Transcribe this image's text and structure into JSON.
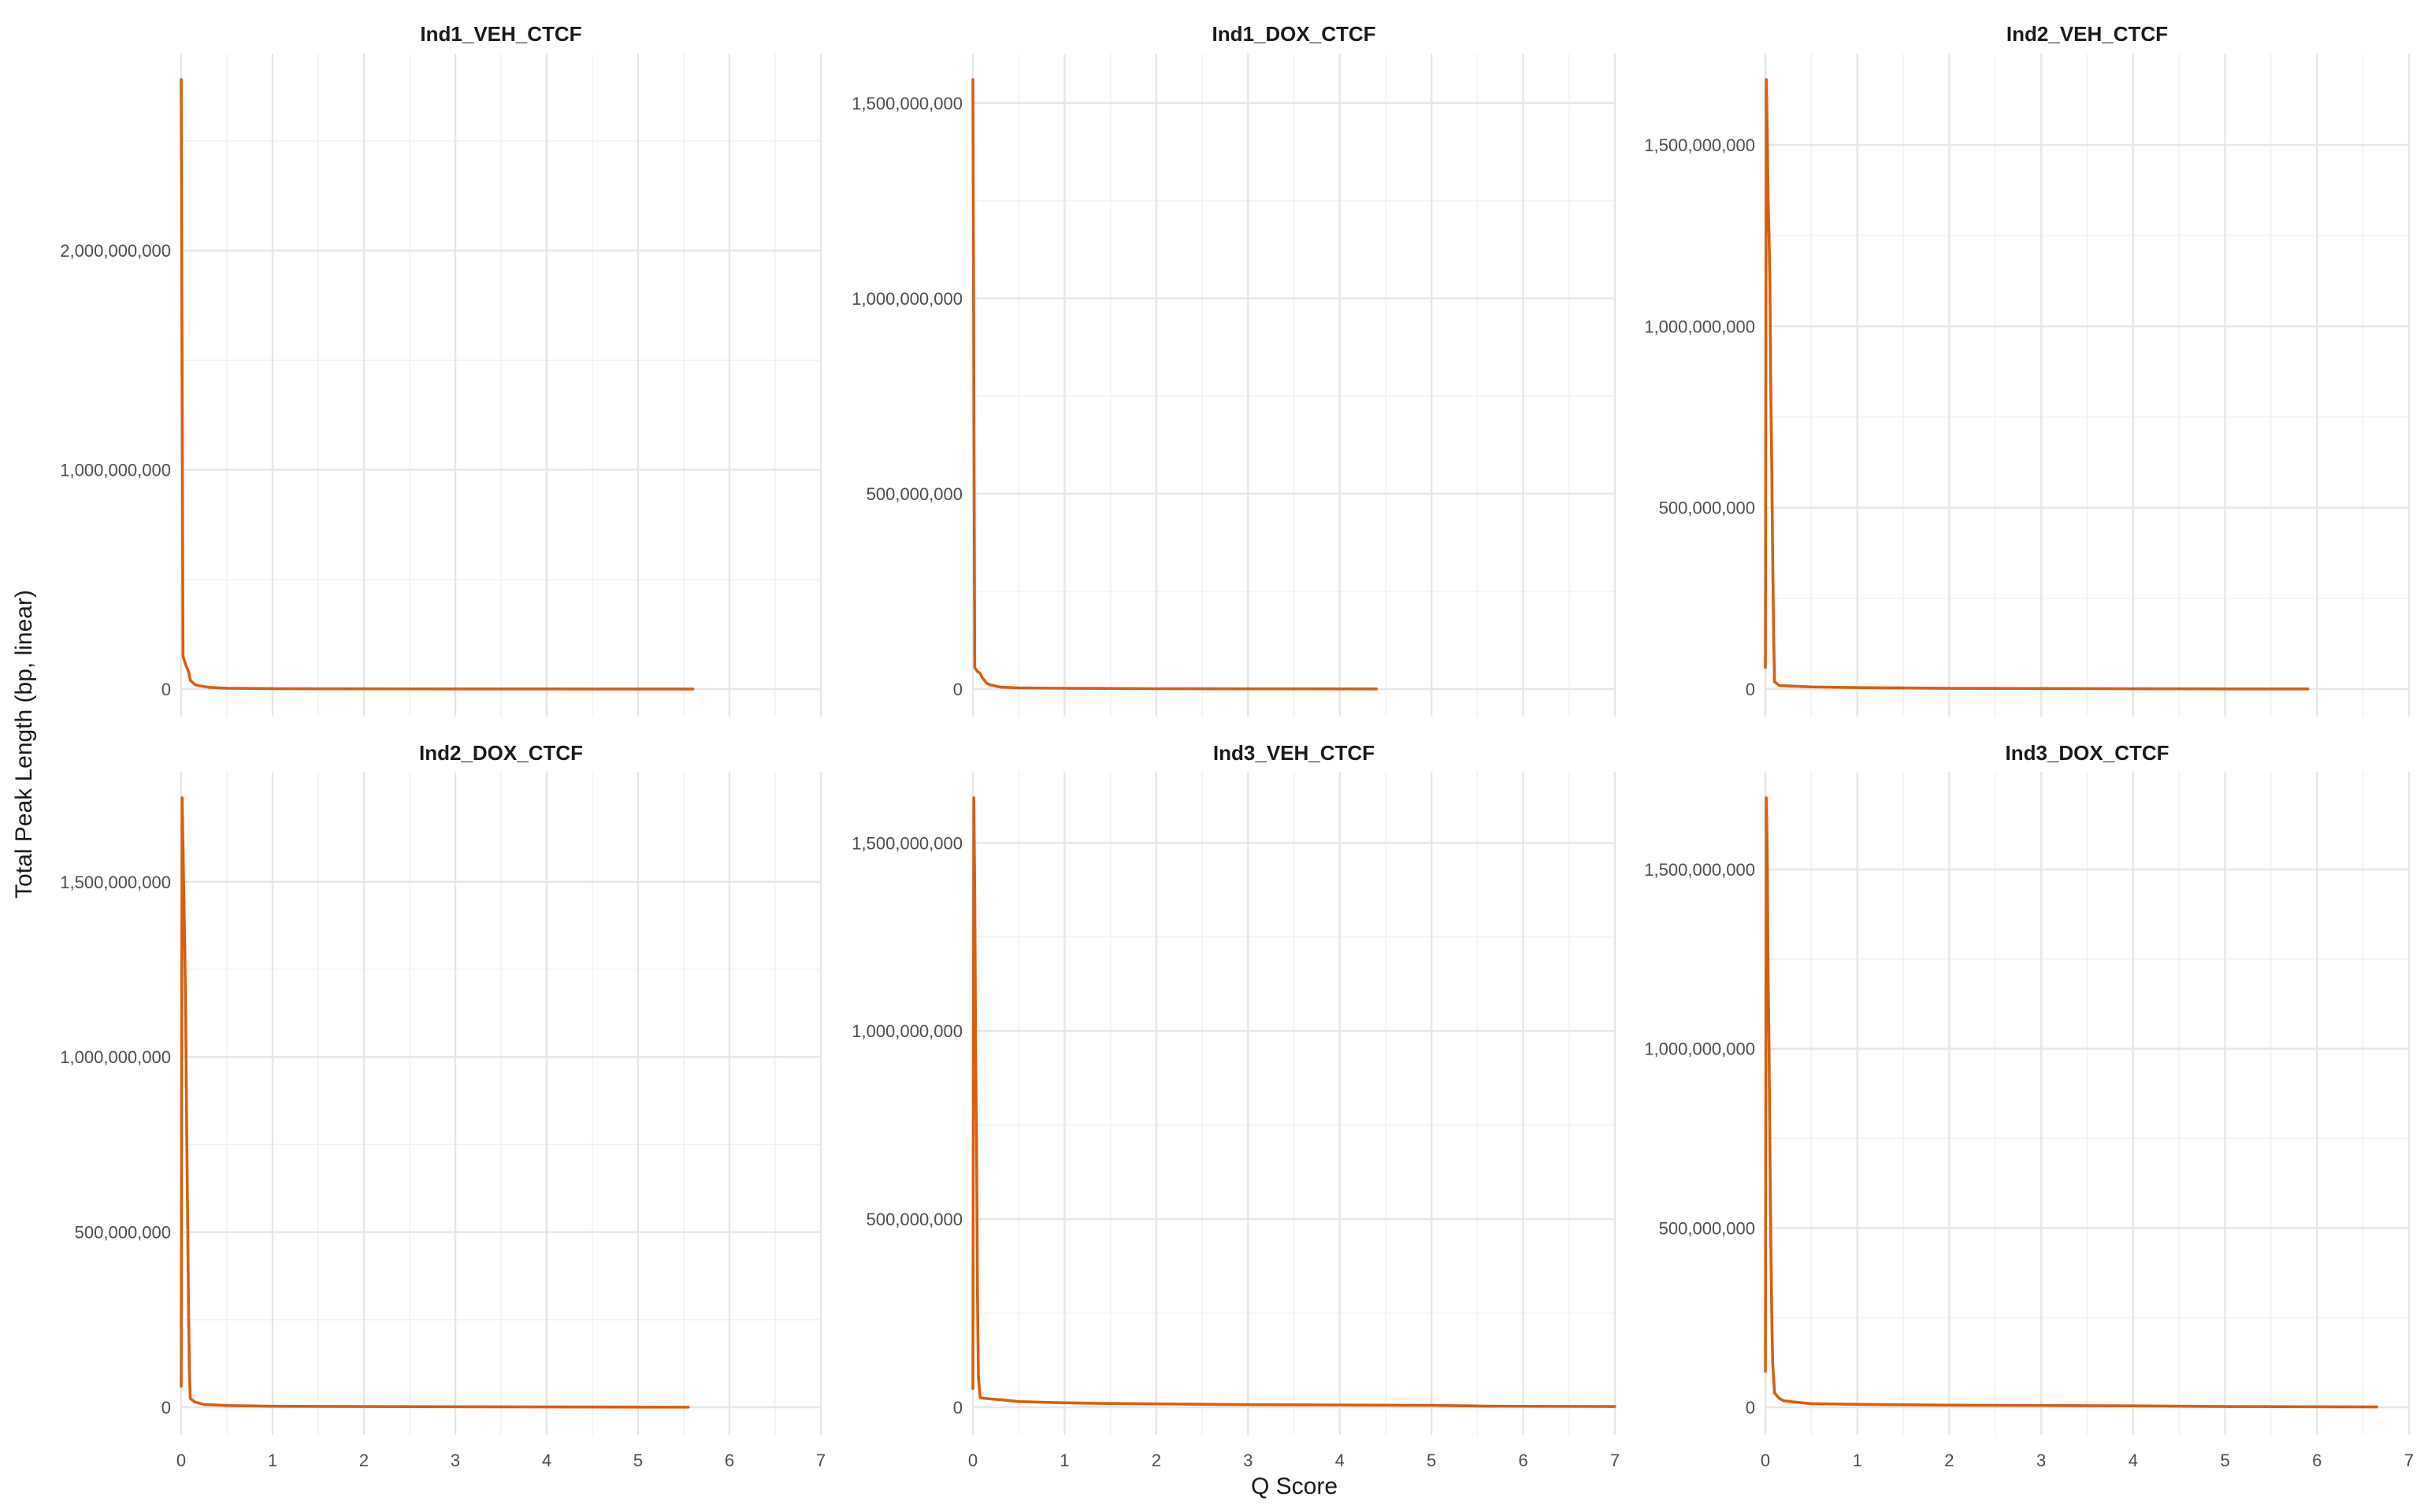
{
  "chart_data": {
    "type": "line",
    "layout": "facet_wrap",
    "xlabel": "Q Score",
    "ylabel": "Total Peak Length (bp, linear)",
    "x_ticks": [
      0,
      1,
      2,
      3,
      4,
      5,
      6,
      7
    ],
    "xlim": [
      0,
      7
    ],
    "grid": true,
    "line_color": "#D95F0E",
    "panels": [
      {
        "title": "Ind1_VEH_CTCF",
        "ylim": [
          0,
          2780000000
        ],
        "y_ticks": [
          0,
          1000000000,
          2000000000
        ],
        "y_tick_labels": [
          "0",
          "1,000,000,000",
          "2,000,000,000"
        ],
        "points": [
          [
            0,
            2780000000
          ],
          [
            0.01,
            1480000000
          ],
          [
            0.02,
            150000000
          ],
          [
            0.05,
            110000000
          ],
          [
            0.08,
            80000000
          ],
          [
            0.1,
            40000000
          ],
          [
            0.15,
            20000000
          ],
          [
            0.2,
            15000000
          ],
          [
            0.3,
            8000000
          ],
          [
            0.5,
            4000000
          ],
          [
            1,
            2000000
          ],
          [
            2,
            1000000
          ],
          [
            3,
            700000
          ],
          [
            4,
            500000
          ],
          [
            5,
            300000
          ],
          [
            5.6,
            200000
          ]
        ]
      },
      {
        "title": "Ind1_DOX_CTCF",
        "ylim": [
          0,
          1560000000
        ],
        "y_ticks": [
          0,
          500000000,
          1000000000,
          1500000000
        ],
        "y_tick_labels": [
          "0",
          "500,000,000",
          "1,000,000,000",
          "1,500,000,000"
        ],
        "points": [
          [
            0,
            1560000000
          ],
          [
            0.01,
            820000000
          ],
          [
            0.02,
            55000000
          ],
          [
            0.05,
            45000000
          ],
          [
            0.08,
            40000000
          ],
          [
            0.1,
            30000000
          ],
          [
            0.15,
            15000000
          ],
          [
            0.2,
            10000000
          ],
          [
            0.3,
            5000000
          ],
          [
            0.5,
            3000000
          ],
          [
            1,
            2000000
          ],
          [
            2,
            1000000
          ],
          [
            3,
            700000
          ],
          [
            4.4,
            400000
          ]
        ]
      },
      {
        "title": "Ind2_VEH_CTCF",
        "ylim": [
          0,
          1680000000
        ],
        "y_ticks": [
          0,
          500000000,
          1000000000,
          1500000000
        ],
        "y_tick_labels": [
          "0",
          "500,000,000",
          "1,000,000,000",
          "1,500,000,000"
        ],
        "points": [
          [
            0,
            60000000
          ],
          [
            0.01,
            1680000000
          ],
          [
            0.02,
            1540000000
          ],
          [
            0.03,
            1350000000
          ],
          [
            0.04,
            1250000000
          ],
          [
            0.05,
            1100000000
          ],
          [
            0.06,
            800000000
          ],
          [
            0.07,
            600000000
          ],
          [
            0.08,
            350000000
          ],
          [
            0.09,
            150000000
          ],
          [
            0.1,
            20000000
          ],
          [
            0.15,
            10000000
          ],
          [
            0.3,
            8000000
          ],
          [
            0.5,
            6000000
          ],
          [
            1,
            4000000
          ],
          [
            2,
            2000000
          ],
          [
            3,
            1500000
          ],
          [
            4,
            1000000
          ],
          [
            5,
            500000
          ],
          [
            5.9,
            300000
          ]
        ]
      },
      {
        "title": "Ind2_DOX_CTCF",
        "ylim": [
          0,
          1740000000
        ],
        "y_ticks": [
          0,
          500000000,
          1000000000,
          1500000000
        ],
        "y_tick_labels": [
          "0",
          "500,000,000",
          "1,000,000,000",
          "1,500,000,000"
        ],
        "points": [
          [
            0,
            60000000
          ],
          [
            0.01,
            1740000000
          ],
          [
            0.02,
            1600000000
          ],
          [
            0.03,
            1450000000
          ],
          [
            0.04,
            1300000000
          ],
          [
            0.05,
            1100000000
          ],
          [
            0.06,
            800000000
          ],
          [
            0.07,
            550000000
          ],
          [
            0.08,
            300000000
          ],
          [
            0.09,
            100000000
          ],
          [
            0.1,
            25000000
          ],
          [
            0.15,
            15000000
          ],
          [
            0.25,
            8000000
          ],
          [
            0.5,
            5000000
          ],
          [
            1,
            3000000
          ],
          [
            2,
            2000000
          ],
          [
            3,
            1500000
          ],
          [
            4,
            1000000
          ],
          [
            5,
            500000
          ],
          [
            5.55,
            300000
          ]
        ]
      },
      {
        "title": "Ind3_VEH_CTCF",
        "ylim": [
          0,
          1620000000
        ],
        "y_ticks": [
          0,
          500000000,
          1000000000,
          1500000000
        ],
        "y_tick_labels": [
          "0",
          "500,000,000",
          "1,000,000,000",
          "1,500,000,000"
        ],
        "points": [
          [
            0,
            50000000
          ],
          [
            0.01,
            1620000000
          ],
          [
            0.02,
            1380000000
          ],
          [
            0.03,
            950000000
          ],
          [
            0.04,
            700000000
          ],
          [
            0.05,
            300000000
          ],
          [
            0.06,
            80000000
          ],
          [
            0.08,
            25000000
          ],
          [
            0.2,
            22000000
          ],
          [
            0.3,
            20000000
          ],
          [
            0.5,
            15000000
          ],
          [
            1,
            12000000
          ],
          [
            1.5,
            10000000
          ],
          [
            2,
            9000000
          ],
          [
            3,
            7000000
          ],
          [
            4,
            6000000
          ],
          [
            5,
            5000000
          ],
          [
            5.6,
            3000000
          ],
          [
            7,
            2000000
          ]
        ]
      },
      {
        "title": "Ind3_DOX_CTCF",
        "ylim": [
          0,
          1700000000
        ],
        "y_ticks": [
          0,
          500000000,
          1000000000,
          1500000000
        ],
        "y_tick_labels": [
          "0",
          "500,000,000",
          "1,000,000,000",
          "1,500,000,000"
        ],
        "points": [
          [
            0,
            100000000
          ],
          [
            0.01,
            1700000000
          ],
          [
            0.02,
            1550000000
          ],
          [
            0.03,
            1200000000
          ],
          [
            0.04,
            1000000000
          ],
          [
            0.05,
            700000000
          ],
          [
            0.06,
            450000000
          ],
          [
            0.07,
            250000000
          ],
          [
            0.08,
            120000000
          ],
          [
            0.1,
            40000000
          ],
          [
            0.15,
            25000000
          ],
          [
            0.2,
            18000000
          ],
          [
            0.3,
            15000000
          ],
          [
            0.5,
            10000000
          ],
          [
            1,
            8000000
          ],
          [
            2,
            6000000
          ],
          [
            3,
            5000000
          ],
          [
            4,
            4000000
          ],
          [
            5,
            2000000
          ],
          [
            6.65,
            1000000
          ]
        ]
      }
    ]
  }
}
